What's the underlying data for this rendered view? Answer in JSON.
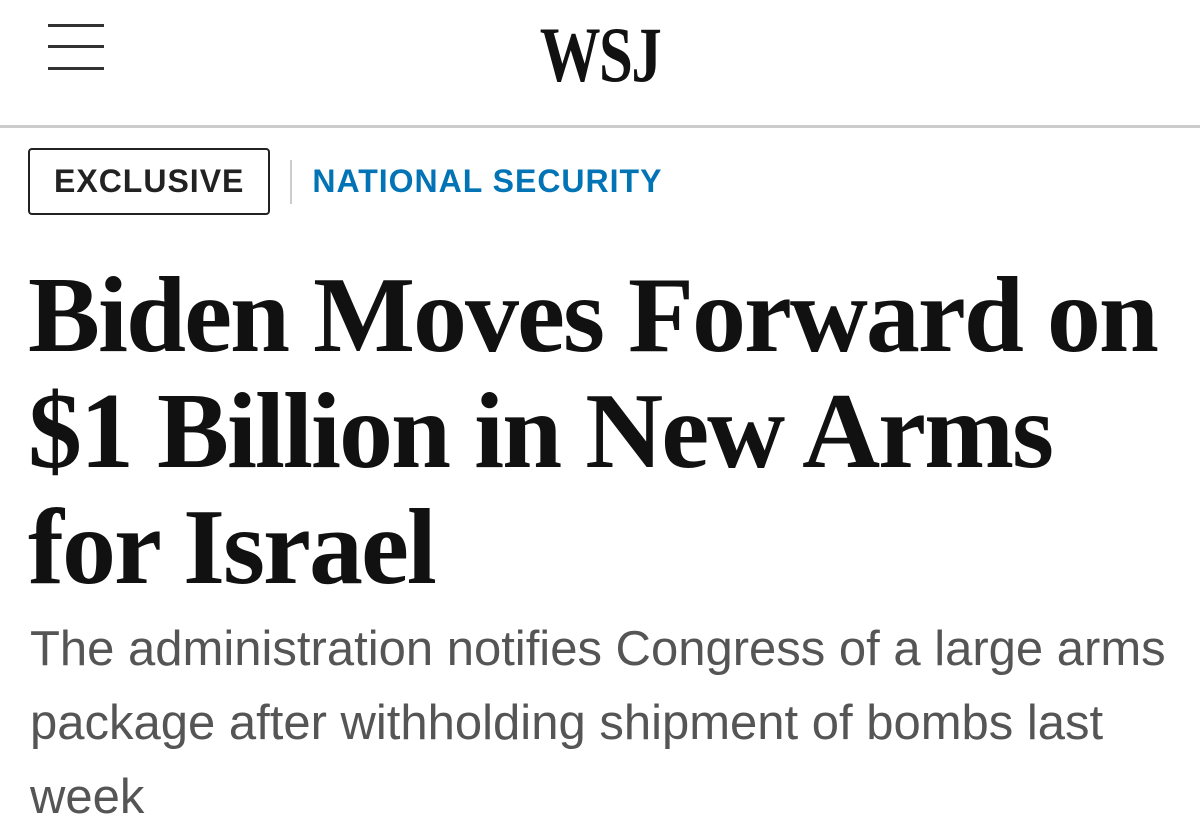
{
  "header": {
    "logo": "WSJ"
  },
  "article": {
    "badge": "EXCLUSIVE",
    "section": "NATIONAL SECURITY",
    "headline": "Biden Moves Forward on $1 Billion in New Arms for Israel",
    "dek": "The administration notifies Congress of a large arms package after withholding shipment of bombs last week"
  }
}
